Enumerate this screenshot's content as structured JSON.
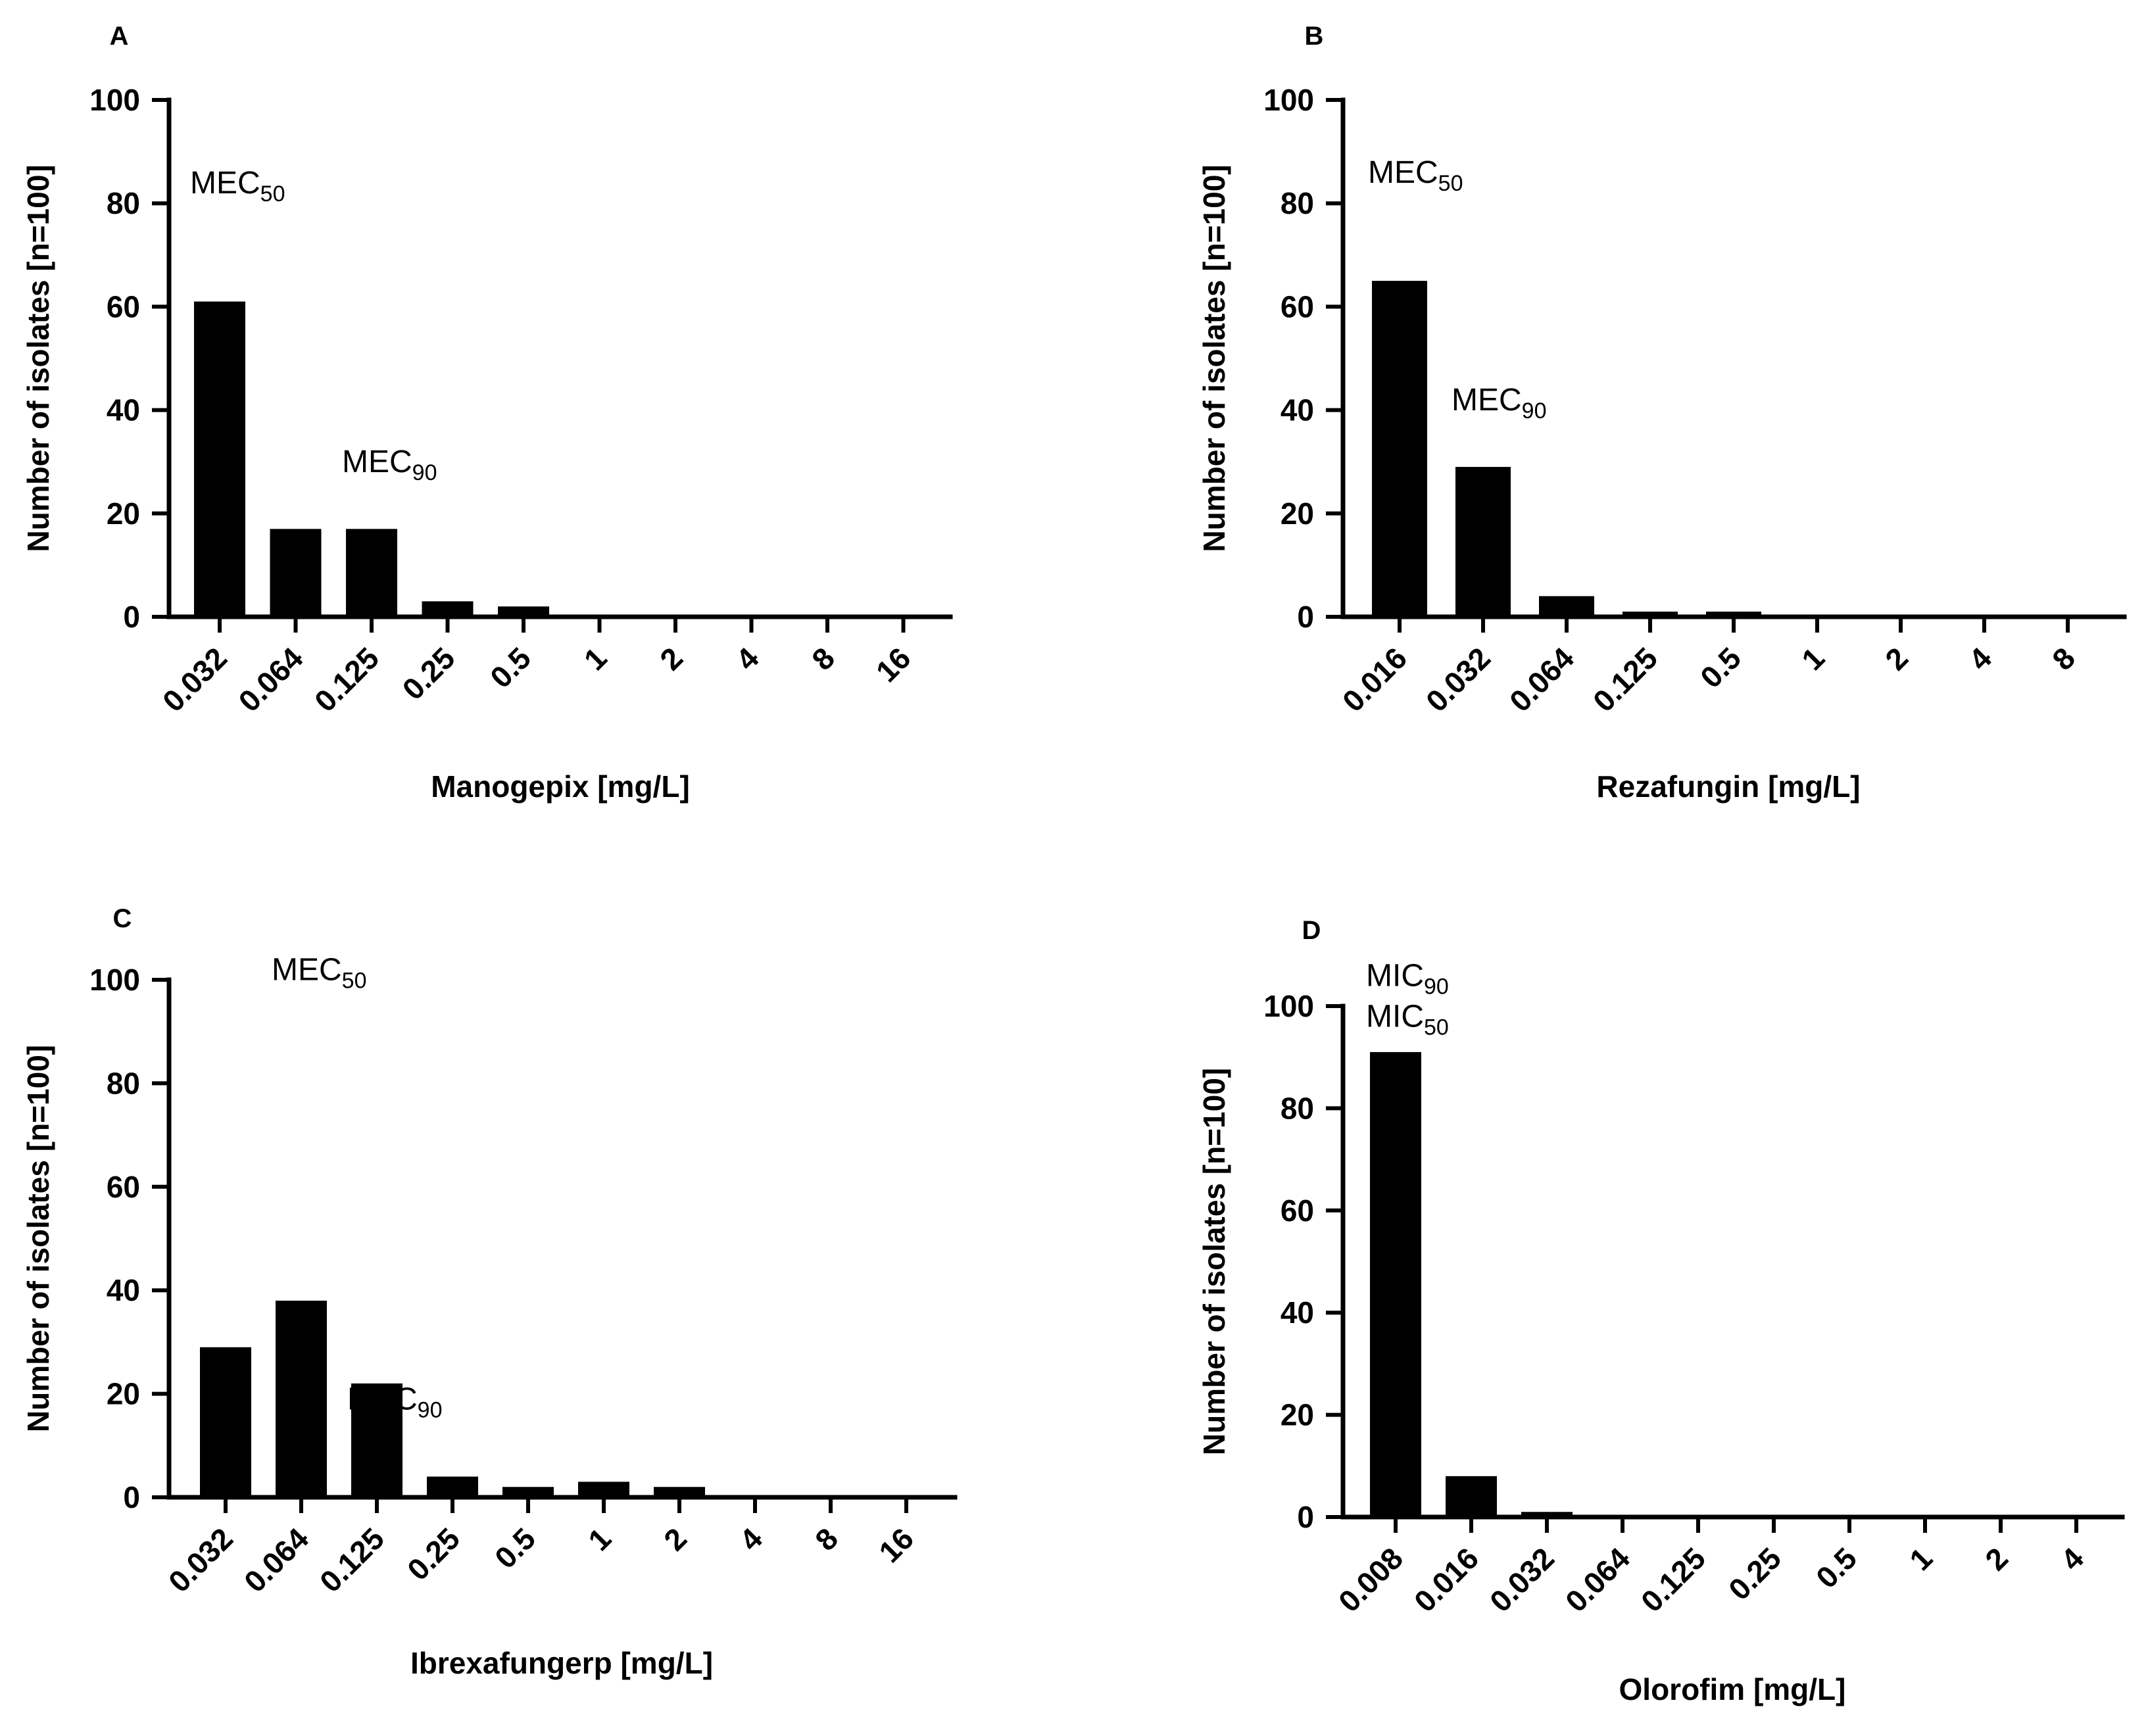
{
  "chart_data": [
    {
      "panel": "A",
      "type": "bar",
      "xlabel": "Manogepix [mg/L]",
      "ylabel": "Number of isolates [n=100]",
      "ylim": [
        0,
        100
      ],
      "yticks": [
        0,
        20,
        40,
        60,
        80,
        100
      ],
      "categories": [
        "0.032",
        "0.064",
        "0.125",
        "0.25",
        "0.5",
        "1",
        "2",
        "4",
        "8",
        "16"
      ],
      "values": [
        61,
        17,
        17,
        3,
        2,
        0,
        0,
        0,
        0,
        0
      ],
      "annotations": [
        {
          "base": "MEC",
          "sub": "50",
          "category": "0.032",
          "at": 84
        },
        {
          "base": "MEC",
          "sub": "90",
          "category": "0.125",
          "at": 30
        }
      ]
    },
    {
      "panel": "B",
      "type": "bar",
      "xlabel": "Rezafungin [mg/L]",
      "ylabel": "Number of isolates [n=100]",
      "ylim": [
        0,
        100
      ],
      "yticks": [
        0,
        20,
        40,
        60,
        80,
        100
      ],
      "categories": [
        "0.016",
        "0.032",
        "0.064",
        "0.125",
        "0.5",
        "1",
        "2",
        "4",
        "8"
      ],
      "values": [
        65,
        29,
        4,
        1,
        1,
        0,
        0,
        0,
        0
      ],
      "annotations": [
        {
          "base": "MEC",
          "sub": "50",
          "category": "0.016",
          "at": 86
        },
        {
          "base": "MEC",
          "sub": "90",
          "category": "0.032",
          "at": 42
        }
      ]
    },
    {
      "panel": "C",
      "type": "bar",
      "xlabel": "Ibrexafungerp [mg/L]",
      "ylabel": "Number of isolates [n=100]",
      "ylim": [
        0,
        100
      ],
      "yticks": [
        0,
        20,
        40,
        60,
        80,
        100
      ],
      "categories": [
        "0.032",
        "0.064",
        "0.125",
        "0.25",
        "0.5",
        "1",
        "2",
        "4",
        "8",
        "16"
      ],
      "values": [
        29,
        38,
        22,
        4,
        2,
        3,
        2,
        0,
        0,
        0
      ],
      "annotations": [
        {
          "base": "MEC",
          "sub": "50",
          "category": "0.064",
          "at": 102
        },
        {
          "base": "MEC",
          "sub": "90",
          "category": "0.125",
          "at": 19
        }
      ]
    },
    {
      "panel": "D",
      "type": "bar",
      "xlabel": "Olorofim [mg/L]",
      "ylabel": "Number of isolates [n=100]",
      "ylim": [
        0,
        100
      ],
      "yticks": [
        0,
        20,
        40,
        60,
        80,
        100
      ],
      "categories": [
        "0.008",
        "0.016",
        "0.032",
        "0.064",
        "0.125",
        "0.25",
        "0.5",
        "1",
        "2",
        "4"
      ],
      "values": [
        91,
        8,
        1,
        0,
        0,
        0,
        0,
        0,
        0,
        0
      ],
      "annotations": [
        {
          "base": "MIC",
          "sub": "90",
          "category": "0.008",
          "at": 106
        },
        {
          "base": "MIC",
          "sub": "50",
          "category": "0.008",
          "at": 98
        }
      ]
    }
  ]
}
